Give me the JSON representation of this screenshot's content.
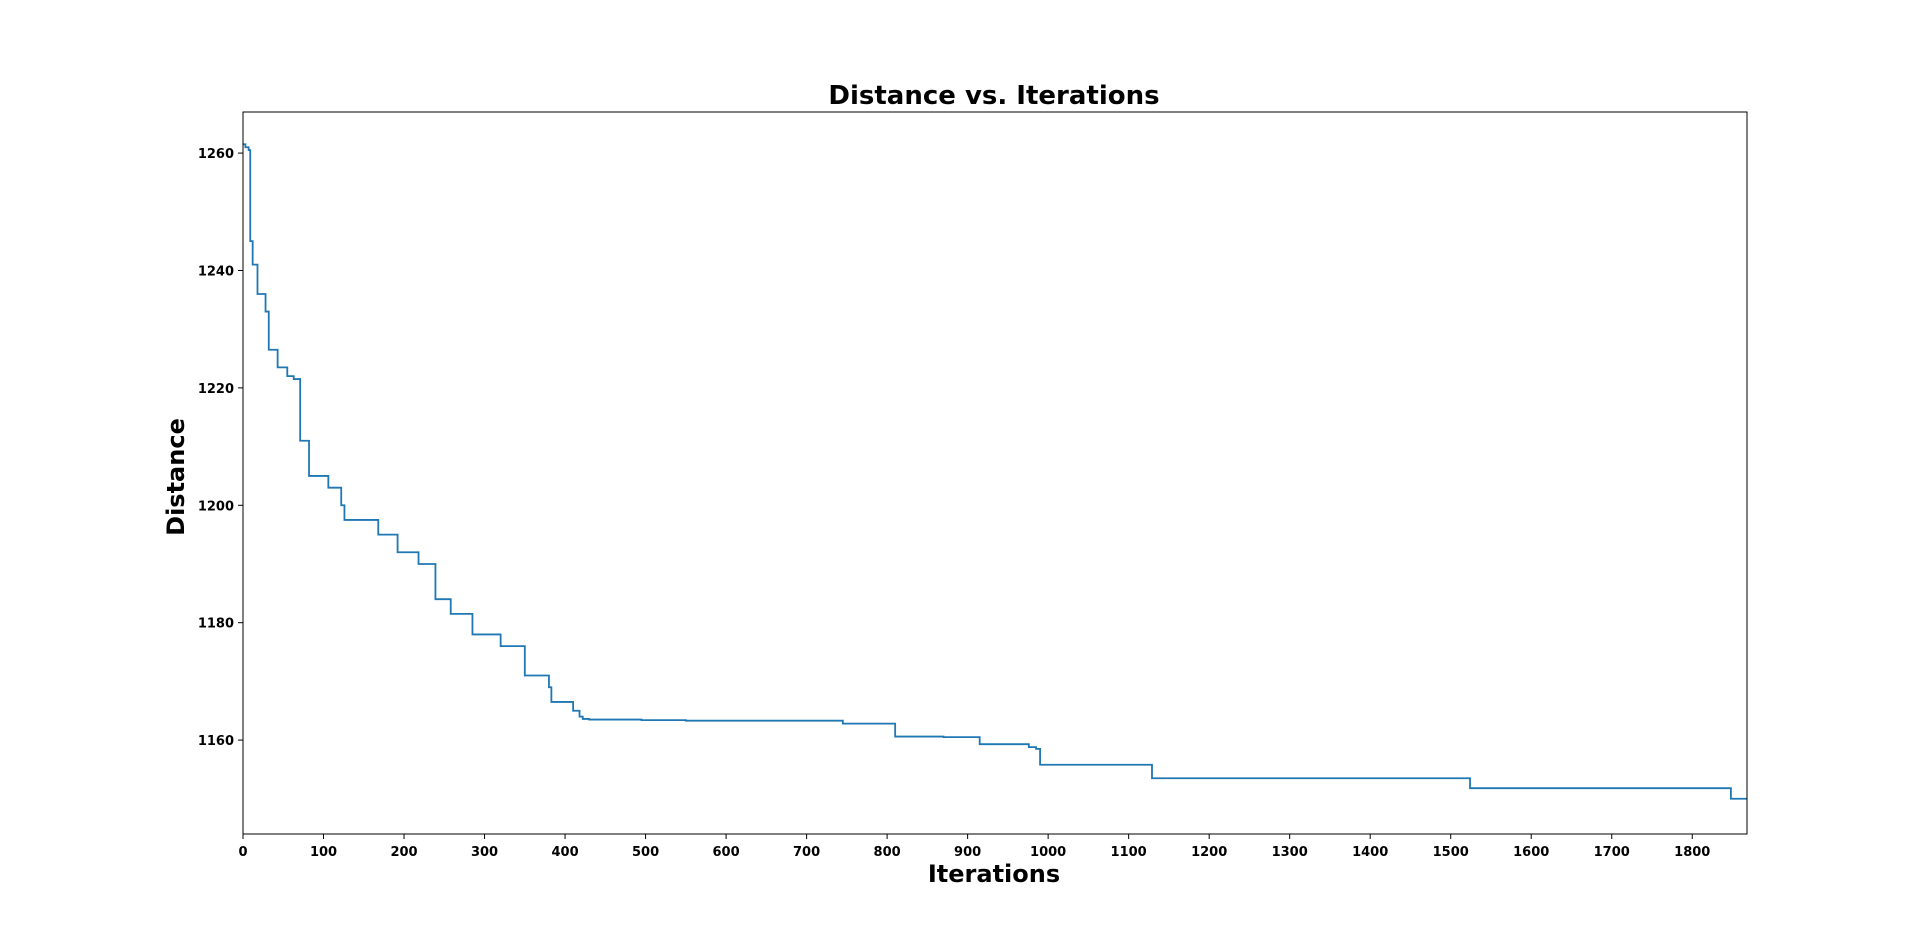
{
  "chart_data": {
    "type": "line",
    "title": "Distance vs. Iterations",
    "xlabel": "Iterations",
    "ylabel": "Distance",
    "xlim": [
      0,
      1868
    ],
    "ylim": [
      1144,
      1267
    ],
    "xticks": [
      0,
      100,
      200,
      300,
      400,
      500,
      600,
      700,
      800,
      900,
      1000,
      1100,
      1200,
      1300,
      1400,
      1500,
      1600,
      1700,
      1800
    ],
    "yticks": [
      1160,
      1180,
      1200,
      1220,
      1240,
      1260
    ],
    "grid": false,
    "line_color": "#1f77b4",
    "step": true,
    "x": [
      0,
      3,
      7,
      9,
      12,
      18,
      28,
      32,
      43,
      55,
      63,
      71,
      82,
      106,
      122,
      126,
      168,
      192,
      218,
      239,
      258,
      285,
      320,
      350,
      380,
      383,
      410,
      418,
      422,
      430,
      495,
      550,
      745,
      810,
      870,
      915,
      976,
      985,
      990,
      1129,
      1524,
      1848,
      1868
    ],
    "y": [
      1261.5,
      1261,
      1260.5,
      1245,
      1241,
      1236,
      1233,
      1226.5,
      1223.5,
      1222,
      1221.5,
      1211,
      1205,
      1203,
      1200,
      1197.5,
      1195,
      1192,
      1190,
      1184,
      1181.5,
      1178,
      1176,
      1171,
      1169,
      1166.5,
      1165,
      1164,
      1163.6,
      1163.5,
      1163.4,
      1163.3,
      1162.8,
      1160.6,
      1160.5,
      1159.3,
      1158.8,
      1158.5,
      1155.8,
      1153.5,
      1151.8,
      1150,
      1150
    ]
  }
}
